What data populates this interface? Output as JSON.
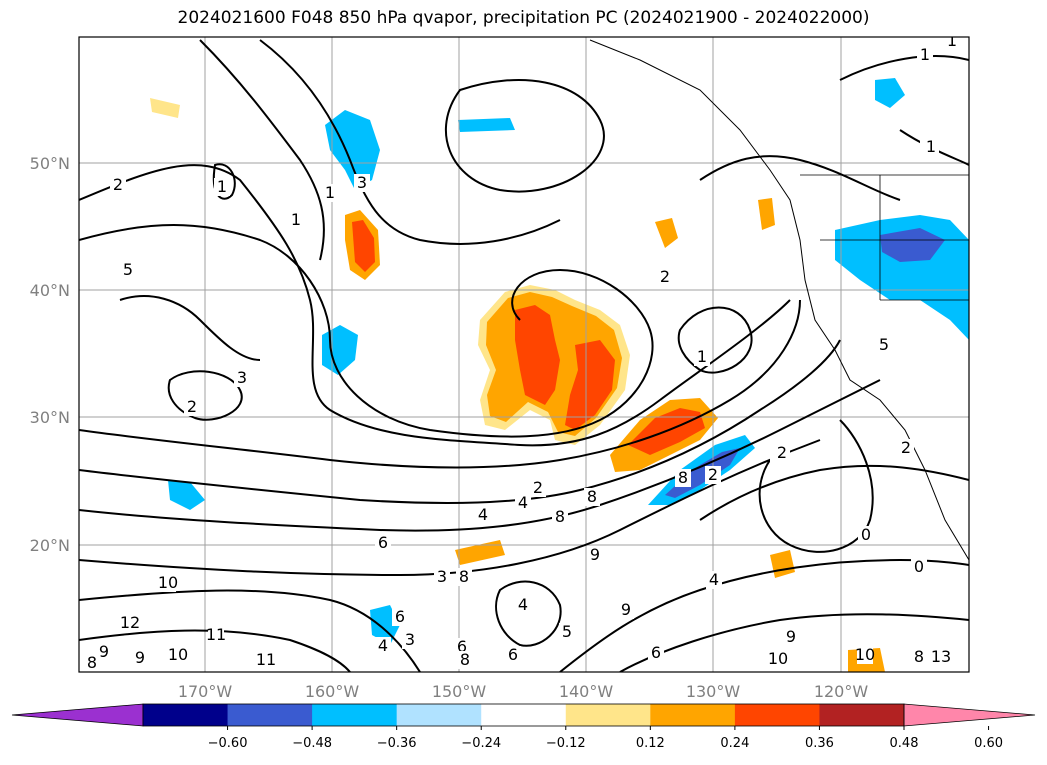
{
  "title": "2024021600 F048 850 hPa qvapor, precipitation PC (2024021900 - 2024022000)",
  "chart_data": {
    "type": "map_contour",
    "lon_ticks": [
      "170°W",
      "160°W",
      "150°W",
      "140°W",
      "130°W",
      "120°W"
    ],
    "lat_ticks": [
      "50°N",
      "40°N",
      "30°N",
      "20°N"
    ],
    "colorbar": {
      "ticks": [
        "−0.60",
        "−0.48",
        "−0.36",
        "−0.24",
        "−0.12",
        "0.12",
        "0.24",
        "0.36",
        "0.48",
        "0.60"
      ],
      "colors": [
        "#9b30d0",
        "#00008b",
        "#3a5bd0",
        "#00bfff",
        "#b0e2ff",
        "#ffffff",
        "#ffe58a",
        "#ffa500",
        "#ff4500",
        "#b22222",
        "#ff86aa"
      ],
      "extend": "both"
    },
    "contour_labels": [
      "2",
      "1",
      "5",
      "1",
      "3",
      "2",
      "3",
      "1",
      "2",
      "1",
      "2",
      "2",
      "4",
      "4",
      "8",
      "8",
      "8",
      "2",
      "8",
      "6",
      "3",
      "9",
      "10",
      "12",
      "11",
      "10",
      "9",
      "11",
      "8",
      "9",
      "6",
      "4",
      "6",
      "8",
      "6",
      "6",
      "9",
      "4",
      "10",
      "9",
      "5",
      "10",
      "8",
      "13",
      "0",
      "0",
      "2",
      "1",
      "1",
      "2",
      "1",
      "4",
      "8",
      "3",
      "5"
    ]
  }
}
